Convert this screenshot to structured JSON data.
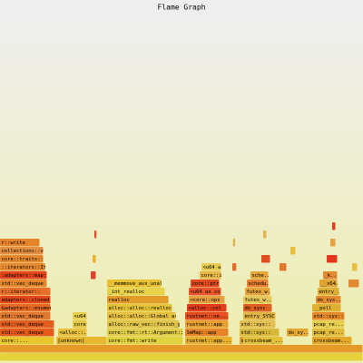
{
  "chart_data": {
    "type": "flamegraph",
    "title": "Flame Graph",
    "frames": [
      {
        "label": null,
        "depth": 0,
        "start": 0,
        "width": 100,
        "color": "#e6d23c"
      },
      {
        "label": null,
        "depth": 1,
        "start": 0,
        "width": 100,
        "color": "#e59a2a"
      },
      {
        "label": "core::...",
        "depth": 2,
        "start": 0,
        "width": 15,
        "color": "#e8c62c"
      },
      {
        "label": "[unknown]",
        "depth": 2,
        "start": 15.5,
        "width": 14,
        "color": "#e6b830"
      },
      {
        "label": "core::fmt::write",
        "depth": 2,
        "start": 29.5,
        "width": 21,
        "color": "#e1d240"
      },
      {
        "label": "rustnet::app...",
        "depth": 2,
        "start": 51,
        "width": 13,
        "color": "#e8b02a"
      },
      {
        "label": "std::threa",
        "depth": 2,
        "start": 66,
        "width": 11,
        "color": "#e0a030"
      },
      {
        "label": "crossbeam_...",
        "depth": 2,
        "start": 67,
        "width": 11,
        "color": "#e2c03a"
      },
      {
        "label": "crossbeam...",
        "depth": 2,
        "start": 86,
        "width": 11,
        "color": "#e6a828"
      },
      {
        "label": "std::vec_deque",
        "depth": 3,
        "start": 0,
        "width": 15,
        "color": "#e55a1a"
      },
      {
        "label": "<alloc::...",
        "depth": 3,
        "start": 16,
        "width": 8,
        "color": "#e8c040"
      },
      {
        "label": "core::fmt::rt::Argument::f",
        "depth": 3,
        "start": 29.5,
        "width": 21,
        "color": "#e0cc48"
      },
      {
        "label": "SmMap::app",
        "depth": 3,
        "start": 51,
        "width": 12,
        "color": "#e88428"
      },
      {
        "label": "std::sys::",
        "depth": 3,
        "start": 66,
        "width": 11,
        "color": "#d8b83a"
      },
      {
        "label": "do_sy...",
        "depth": 3,
        "start": 79,
        "width": 6,
        "color": "#e4a832"
      },
      {
        "label": "pcap_re...",
        "depth": 3,
        "start": 86,
        "width": 9,
        "color": "#e0bc3a"
      },
      {
        "label": "std::vec_deque",
        "depth": 4,
        "start": 0,
        "width": 15,
        "color": "#e35d20"
      },
      {
        "label": "core",
        "depth": 4,
        "start": 20,
        "width": 4,
        "color": "#e3c848"
      },
      {
        "label": "alloc::raw_vec::finish_grow",
        "depth": 4,
        "start": 29.5,
        "width": 20,
        "color": "#e0c44a"
      },
      {
        "label": "rustnet::app",
        "depth": 4,
        "start": 51,
        "width": 12,
        "color": "#e8a030"
      },
      {
        "label": "std::sys::",
        "depth": 4,
        "start": 66,
        "width": 10,
        "color": "#e4c052"
      },
      {
        "label": "pcap_re...",
        "depth": 4,
        "start": 86,
        "width": 9,
        "color": "#e7cf50"
      },
      {
        "label": "std::vec_deque",
        "depth": 5,
        "start": 0,
        "width": 14,
        "color": "#e07830"
      },
      {
        "label": "<u64",
        "depth": 5,
        "start": 20,
        "width": 4,
        "color": "#e8d050"
      },
      {
        "label": "alloc::alloc::Global as c",
        "depth": 5,
        "start": 29.5,
        "width": 19,
        "color": "#e6c040"
      },
      {
        "label": "rustnet::ne...",
        "depth": 5,
        "start": 51,
        "width": 12,
        "color": "#e54e1e"
      },
      {
        "label": "entry_SYSC",
        "depth": 5,
        "start": 67,
        "width": 9,
        "color": "#e0b440"
      },
      {
        "label": "std::sys::",
        "depth": 5,
        "start": 86,
        "width": 9,
        "color": "#e68a2a"
      },
      {
        "label": "&adapters::enumera",
        "depth": 6,
        "start": 0,
        "width": 14,
        "color": "#e86a22"
      },
      {
        "label": "alloc::alloc::realloc",
        "depth": 6,
        "start": 29.5,
        "width": 18,
        "color": "#e8c434"
      },
      {
        "label": "<alloc::col",
        "depth": 6,
        "start": 51.5,
        "width": 11,
        "color": "#e33e1a"
      },
      {
        "label": "do_sysc",
        "depth": 6,
        "start": 67,
        "width": 8,
        "color": "#e06020"
      },
      {
        "label": "__poll",
        "depth": 6,
        "start": 86,
        "width": 8,
        "color": "#e0b030"
      },
      {
        "label": "adapters::cloned",
        "depth": 7,
        "start": 0,
        "width": 14,
        "color": "#e44818"
      },
      {
        "label": "realloc",
        "depth": 7,
        "start": 29.5,
        "width": 17,
        "color": "#e29a28"
      },
      {
        "label": "<core::ops",
        "depth": 7,
        "start": 52,
        "width": 10,
        "color": "#e6a040"
      },
      {
        "label": "futex_w..",
        "depth": 7,
        "start": 67,
        "width": 8,
        "color": "#e8c85a"
      },
      {
        "label": "do_sys...",
        "depth": 7,
        "start": 87,
        "width": 7,
        "color": "#e68c30"
      },
      {
        "label": "r::iterator::",
        "depth": 8,
        "start": 0,
        "width": 14,
        "color": "#e86f2a"
      },
      {
        "label": "_int_realloc",
        "depth": 8,
        "start": 29.5,
        "width": 16,
        "color": "#e8d24a"
      },
      {
        "label": "<u64 as co",
        "depth": 8,
        "start": 52,
        "width": 9,
        "color": "#e9542a"
      },
      {
        "label": "futex_w..",
        "depth": 8,
        "start": 67.5,
        "width": 7,
        "color": "#e6a43a"
      },
      {
        "label": "entry_...",
        "depth": 8,
        "start": 87.5,
        "width": 6,
        "color": "#e0b034"
      },
      {
        "label": "std::vec_deque",
        "depth": 9,
        "start": 0,
        "width": 13,
        "color": "#e6872e"
      },
      {
        "label": "__memmove_avx_unaligned_e",
        "depth": 9,
        "start": 29.5,
        "width": 15,
        "color": "#e8c032"
      },
      {
        "label": "core::ptr",
        "depth": 9,
        "start": 52.5,
        "width": 8,
        "color": "#e24a1e"
      },
      {
        "label": "schedu..",
        "depth": 9,
        "start": 68,
        "width": 6,
        "color": "#e98030"
      },
      {
        "label": "__x64...",
        "depth": 9,
        "start": 88,
        "width": 5,
        "color": "#e2a430"
      },
      {
        "label": ":adapters::map::Ma",
        "depth": 10,
        "start": 0,
        "width": 13,
        "color": "#e3441c"
      },
      {
        "label": "core::it",
        "depth": 10,
        "start": 55,
        "width": 6,
        "color": "#e6b848"
      },
      {
        "label": "sche..",
        "depth": 10,
        "start": 69,
        "width": 5,
        "color": "#e4a53a"
      },
      {
        "label": "_k...",
        "depth": 10,
        "start": 89,
        "width": 4,
        "color": "#e38a32"
      },
      {
        "label": "::iterators::Iterat",
        "depth": 11,
        "start": 0,
        "width": 12.5,
        "color": "#e58a30"
      },
      {
        "label": "<u64 as.",
        "depth": 11,
        "start": 55.5,
        "width": 5.5,
        "color": "#e8cc52"
      },
      {
        "label": "core::traits::it",
        "depth": 12,
        "start": 0,
        "width": 12,
        "color": "#e68a2c"
      },
      {
        "label": "collections::ve",
        "depth": 13,
        "start": 0,
        "width": 12,
        "color": "#e59040"
      },
      {
        "label": "r::write",
        "depth": 14,
        "start": 0,
        "width": 11,
        "color": "#e6842a"
      },
      {
        "label": null,
        "depth": 10,
        "start": 25,
        "width": 1.5,
        "color": "#e0402a"
      },
      {
        "label": null,
        "depth": 12,
        "start": 25.5,
        "width": 1,
        "color": "#e8b030"
      },
      {
        "label": null,
        "depth": 15,
        "start": 26,
        "width": 0.7,
        "color": "#e04828"
      },
      {
        "label": null,
        "depth": 11,
        "start": 64,
        "width": 1.2,
        "color": "#e66a2a"
      },
      {
        "label": null,
        "depth": 14,
        "start": 64.2,
        "width": 0.7,
        "color": "#e0b040"
      },
      {
        "label": null,
        "depth": 12,
        "start": 72,
        "width": 2.5,
        "color": "#e24c22"
      },
      {
        "label": null,
        "depth": 15,
        "start": 72.5,
        "width": 1,
        "color": "#e8b050"
      },
      {
        "label": null,
        "depth": 11,
        "start": 77,
        "width": 2,
        "color": "#e07a2a"
      },
      {
        "label": null,
        "depth": 13,
        "start": 80,
        "width": 1.5,
        "color": "#e8c040"
      },
      {
        "label": null,
        "depth": 12,
        "start": 90,
        "width": 3,
        "color": "#e3361a"
      },
      {
        "label": null,
        "depth": 14,
        "start": 91,
        "width": 1.5,
        "color": "#e8a040"
      },
      {
        "label": null,
        "depth": 16,
        "start": 91.5,
        "width": 1,
        "color": "#e0401e"
      },
      {
        "label": null,
        "depth": 9,
        "start": 96,
        "width": 3,
        "color": "#e28a30"
      },
      {
        "label": null,
        "depth": 11,
        "start": 97,
        "width": 1.5,
        "color": "#e6c040"
      }
    ]
  }
}
